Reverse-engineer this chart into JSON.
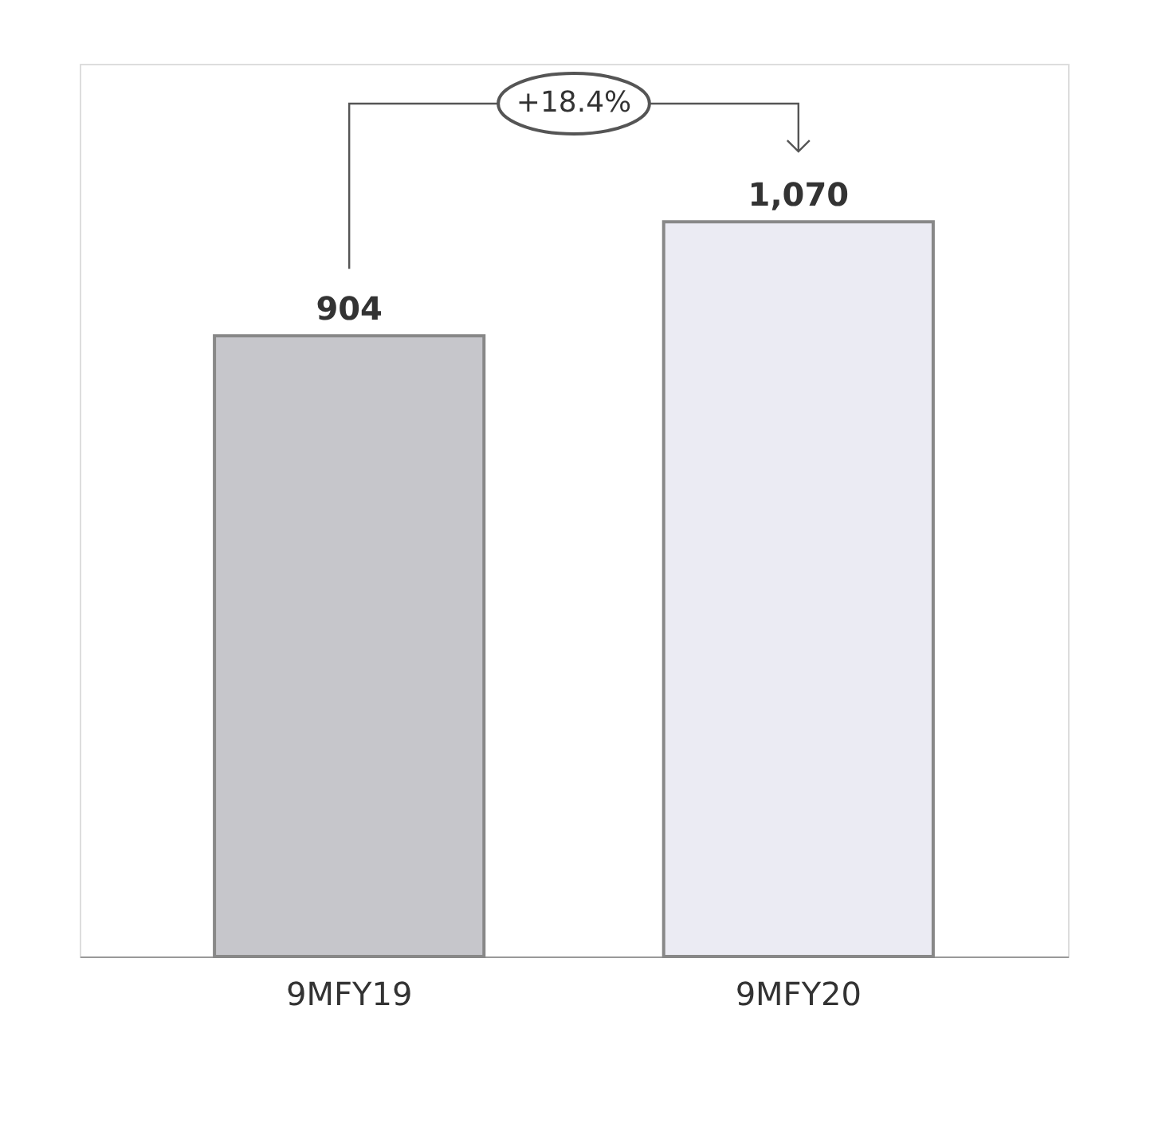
{
  "chart_data": {
    "type": "bar",
    "categories": [
      "9MFY19",
      "9MFY20"
    ],
    "values": [
      904,
      1070
    ],
    "colors": [
      "#c6c6cb",
      "#ebebf3"
    ],
    "value_labels": [
      "904",
      "1,070"
    ],
    "ylim": [
      0,
      1300
    ],
    "tick_labels": "x",
    "grid": false,
    "annotations": [
      "+18.4%"
    ]
  }
}
